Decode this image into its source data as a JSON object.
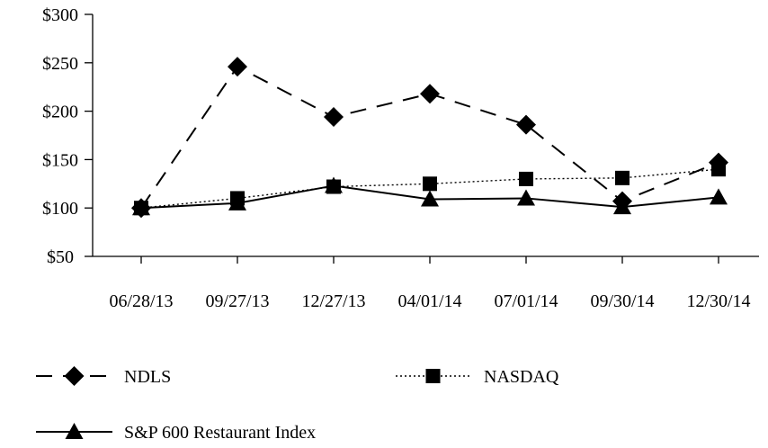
{
  "chart_data": {
    "type": "line",
    "title": "",
    "xlabel": "",
    "ylabel": "",
    "categories": [
      "06/28/13",
      "09/27/13",
      "12/27/13",
      "04/01/14",
      "07/01/14",
      "09/30/14",
      "12/30/14"
    ],
    "y_ticks": [
      "$50",
      "$100",
      "$150",
      "$200",
      "$250",
      "$300"
    ],
    "ylim": [
      50,
      300
    ],
    "grid": false,
    "legend_position": "bottom",
    "series": [
      {
        "name": "NDLS",
        "values": [
          100,
          246,
          194,
          218,
          186,
          107,
          147
        ],
        "marker": "diamond",
        "line_style": "dashed",
        "color": "#000000"
      },
      {
        "name": "NASDAQ",
        "values": [
          100,
          110,
          122,
          125,
          130,
          131,
          140
        ],
        "marker": "square",
        "line_style": "dotted",
        "color": "#000000"
      },
      {
        "name": "S&P 600 Restaurant Index",
        "values": [
          100,
          105,
          123,
          109,
          110,
          101,
          111
        ],
        "marker": "triangle",
        "line_style": "solid",
        "color": "#000000"
      }
    ]
  }
}
